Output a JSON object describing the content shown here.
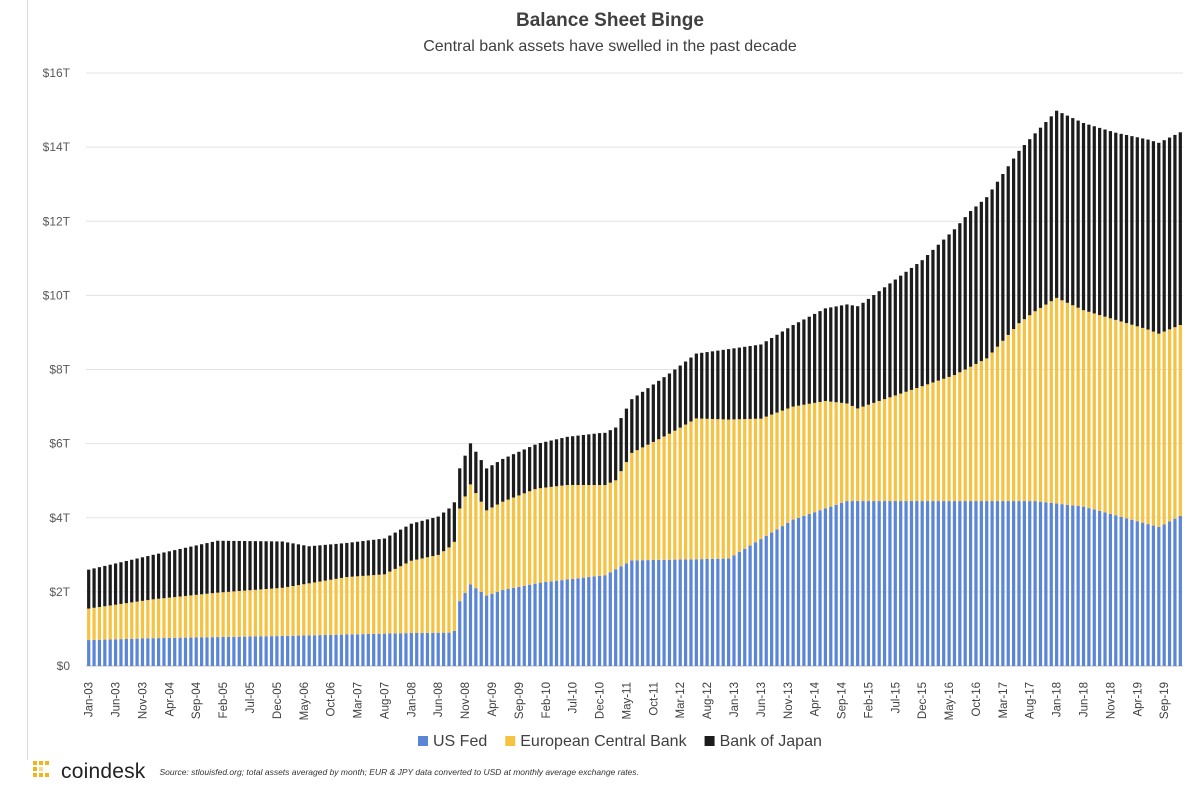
{
  "chart_data": {
    "type": "bar",
    "stacked": true,
    "title": "Balance Sheet Binge",
    "subtitle": "Central bank assets have swelled in the past decade",
    "ylim": [
      0,
      16
    ],
    "yticks": [
      0,
      2,
      4,
      6,
      8,
      10,
      12,
      14,
      16
    ],
    "ytick_labels": [
      "$0",
      "$2T",
      "$4T",
      "$6T",
      "$8T",
      "$10T",
      "$12T",
      "$14T",
      "$16T"
    ],
    "grid": true,
    "legend_position": "bottom",
    "x_start": "2003-01",
    "x_end": "2019-12",
    "xtick_labels": [
      "Jan-03",
      "Jun-03",
      "Nov-03",
      "Apr-04",
      "Sep-04",
      "Feb-05",
      "Jul-05",
      "Dec-05",
      "May-06",
      "Oct-06",
      "Mar-07",
      "Aug-07",
      "Jan-08",
      "Jun-08",
      "Nov-08",
      "Apr-09",
      "Sep-09",
      "Feb-10",
      "Jul-10",
      "Dec-10",
      "May-11",
      "Oct-11",
      "Mar-12",
      "Aug-12",
      "Jan-13",
      "Jun-13",
      "Nov-13",
      "Apr-14",
      "Sep-14",
      "Feb-15",
      "Jul-15",
      "Dec-15",
      "May-16",
      "Oct-16",
      "Mar-17",
      "Aug-17",
      "Jan-18",
      "Jun-18",
      "Nov-18",
      "Apr-19",
      "Sep-19"
    ],
    "series": [
      {
        "name": "US Fed",
        "color": "#5b86d6",
        "anchors": [
          [
            "2003-01",
            0.7
          ],
          [
            "2004-01",
            0.75
          ],
          [
            "2005-01",
            0.78
          ],
          [
            "2006-01",
            0.81
          ],
          [
            "2007-01",
            0.85
          ],
          [
            "2008-01",
            0.89
          ],
          [
            "2008-08",
            0.9
          ],
          [
            "2008-09",
            0.95
          ],
          [
            "2008-10",
            1.75
          ],
          [
            "2008-12",
            2.2
          ],
          [
            "2009-03",
            1.9
          ],
          [
            "2009-06",
            2.05
          ],
          [
            "2010-01",
            2.25
          ],
          [
            "2011-01",
            2.45
          ],
          [
            "2011-06",
            2.85
          ],
          [
            "2012-06",
            2.88
          ],
          [
            "2012-12",
            2.9
          ],
          [
            "2013-12",
            3.95
          ],
          [
            "2014-10",
            4.45
          ],
          [
            "2017-09",
            4.45
          ],
          [
            "2018-06",
            4.3
          ],
          [
            "2019-08",
            3.75
          ],
          [
            "2019-12",
            4.05
          ]
        ]
      },
      {
        "name": "European Central Bank",
        "color": "#f5c242",
        "anchors": [
          [
            "2003-01",
            0.85
          ],
          [
            "2004-01",
            1.05
          ],
          [
            "2005-01",
            1.2
          ],
          [
            "2006-01",
            1.3
          ],
          [
            "2007-01",
            1.55
          ],
          [
            "2007-08",
            1.6
          ],
          [
            "2008-01",
            1.95
          ],
          [
            "2008-06",
            2.1
          ],
          [
            "2008-10",
            2.5
          ],
          [
            "2008-12",
            2.7
          ],
          [
            "2009-03",
            2.3
          ],
          [
            "2009-12",
            2.55
          ],
          [
            "2010-06",
            2.55
          ],
          [
            "2011-03",
            2.4
          ],
          [
            "2011-06",
            2.9
          ],
          [
            "2012-01",
            3.4
          ],
          [
            "2012-06",
            3.8
          ],
          [
            "2012-12",
            3.75
          ],
          [
            "2013-06",
            3.25
          ],
          [
            "2013-12",
            3.05
          ],
          [
            "2014-06",
            2.9
          ],
          [
            "2014-12",
            2.5
          ],
          [
            "2015-06",
            2.8
          ],
          [
            "2016-06",
            3.4
          ],
          [
            "2016-12",
            3.85
          ],
          [
            "2017-06",
            4.8
          ],
          [
            "2018-01",
            5.55
          ],
          [
            "2018-06",
            5.3
          ],
          [
            "2019-06",
            5.25
          ],
          [
            "2019-12",
            5.15
          ]
        ]
      },
      {
        "name": "Bank of Japan",
        "color": "#1c1c1c",
        "anchors": [
          [
            "2003-01",
            1.05
          ],
          [
            "2004-01",
            1.2
          ],
          [
            "2005-01",
            1.4
          ],
          [
            "2006-01",
            1.25
          ],
          [
            "2006-06",
            1.0
          ],
          [
            "2007-01",
            0.92
          ],
          [
            "2008-01",
            1.0
          ],
          [
            "2008-08",
            1.05
          ],
          [
            "2008-11",
            1.1
          ],
          [
            "2009-12",
            1.2
          ],
          [
            "2010-12",
            1.4
          ],
          [
            "2011-06",
            1.45
          ],
          [
            "2012-06",
            1.75
          ],
          [
            "2012-12",
            1.9
          ],
          [
            "2013-06",
            2.0
          ],
          [
            "2013-12",
            2.2
          ],
          [
            "2014-06",
            2.5
          ],
          [
            "2015-01",
            2.8
          ],
          [
            "2015-12",
            3.4
          ],
          [
            "2016-09",
            4.2
          ],
          [
            "2017-03",
            4.5
          ],
          [
            "2017-09",
            4.8
          ],
          [
            "2018-01",
            5.05
          ],
          [
            "2018-12",
            5.05
          ],
          [
            "2019-12",
            5.2
          ]
        ]
      }
    ]
  },
  "footer": {
    "brand": "coindesk",
    "source_note": "Source: stlouisfed.org; total assets averaged by month; EUR & JPY data converted to USD at monthly average exchange rates."
  }
}
